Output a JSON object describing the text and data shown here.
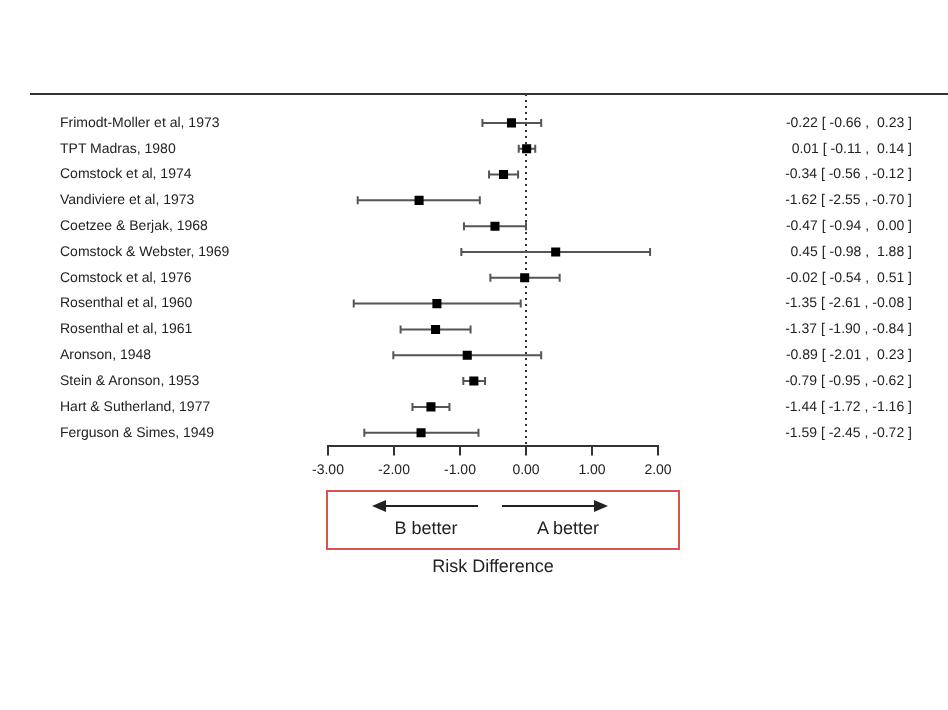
{
  "chart_data": {
    "type": "scatter",
    "orientation": "horizontal",
    "xlabel": "Risk Difference",
    "categories": [
      "Frimodt-Moller et al, 1973",
      "TPT Madras, 1980",
      "Comstock et al, 1974",
      "Vandiviere et al, 1973",
      "Coetzee & Berjak, 1968",
      "Comstock & Webster, 1969",
      "Comstock et al, 1976",
      "Rosenthal et al, 1960",
      "Rosenthal et al, 1961",
      "Aronson, 1948",
      "Stein & Aronson, 1953",
      "Hart & Sutherland, 1977",
      "Ferguson & Simes, 1949"
    ],
    "values": [
      -0.22,
      0.01,
      -0.34,
      -1.62,
      -0.47,
      0.45,
      -0.02,
      -1.35,
      -1.37,
      -0.89,
      -0.79,
      -1.44,
      -1.59
    ],
    "errors": [
      [
        -0.66,
        0.23
      ],
      [
        -0.11,
        0.14
      ],
      [
        -0.56,
        -0.12
      ],
      [
        -2.55,
        -0.7
      ],
      [
        -0.94,
        0.0
      ],
      [
        -0.98,
        1.88
      ],
      [
        -0.54,
        0.51
      ],
      [
        -2.61,
        -0.08
      ],
      [
        -1.9,
        -0.84
      ],
      [
        -2.01,
        0.23
      ],
      [
        -0.95,
        -0.62
      ],
      [
        -1.72,
        -1.16
      ],
      [
        -2.45,
        -0.72
      ]
    ],
    "value_labels": [
      "-0.22 [ -0.66 ,  0.23 ]",
      "0.01 [ -0.11 ,  0.14 ]",
      "-0.34 [ -0.56 , -0.12 ]",
      "-1.62 [ -2.55 , -0.70 ]",
      "-0.47 [ -0.94 ,  0.00 ]",
      "0.45 [ -0.98 ,  1.88 ]",
      "-0.02 [ -0.54 ,  0.51 ]",
      "-1.35 [ -2.61 , -0.08 ]",
      "-1.37 [ -1.90 , -0.84 ]",
      "-0.89 [ -2.01 ,  0.23 ]",
      "-0.79 [ -0.95 , -0.62 ]",
      "-1.44 [ -1.72 , -1.16 ]",
      "-1.59 [ -2.45 , -0.72 ]"
    ],
    "color": "#000000",
    "marker": "square",
    "xlim": [
      -3,
      2
    ],
    "xticks": [
      {
        "value": -3,
        "label": "-3.00"
      },
      {
        "value": -2,
        "label": "-2.00"
      },
      {
        "value": -1,
        "label": "-1.00"
      },
      {
        "value": 0,
        "label": "0.00"
      },
      {
        "value": 1,
        "label": "1.00"
      },
      {
        "value": 2,
        "label": "2.00"
      }
    ],
    "ref_lines": [
      {
        "axis": "x",
        "value": 0,
        "line_style": "dotted"
      }
    ],
    "annotations": [
      "B better",
      "A better"
    ],
    "grid": false,
    "legend": false
  }
}
